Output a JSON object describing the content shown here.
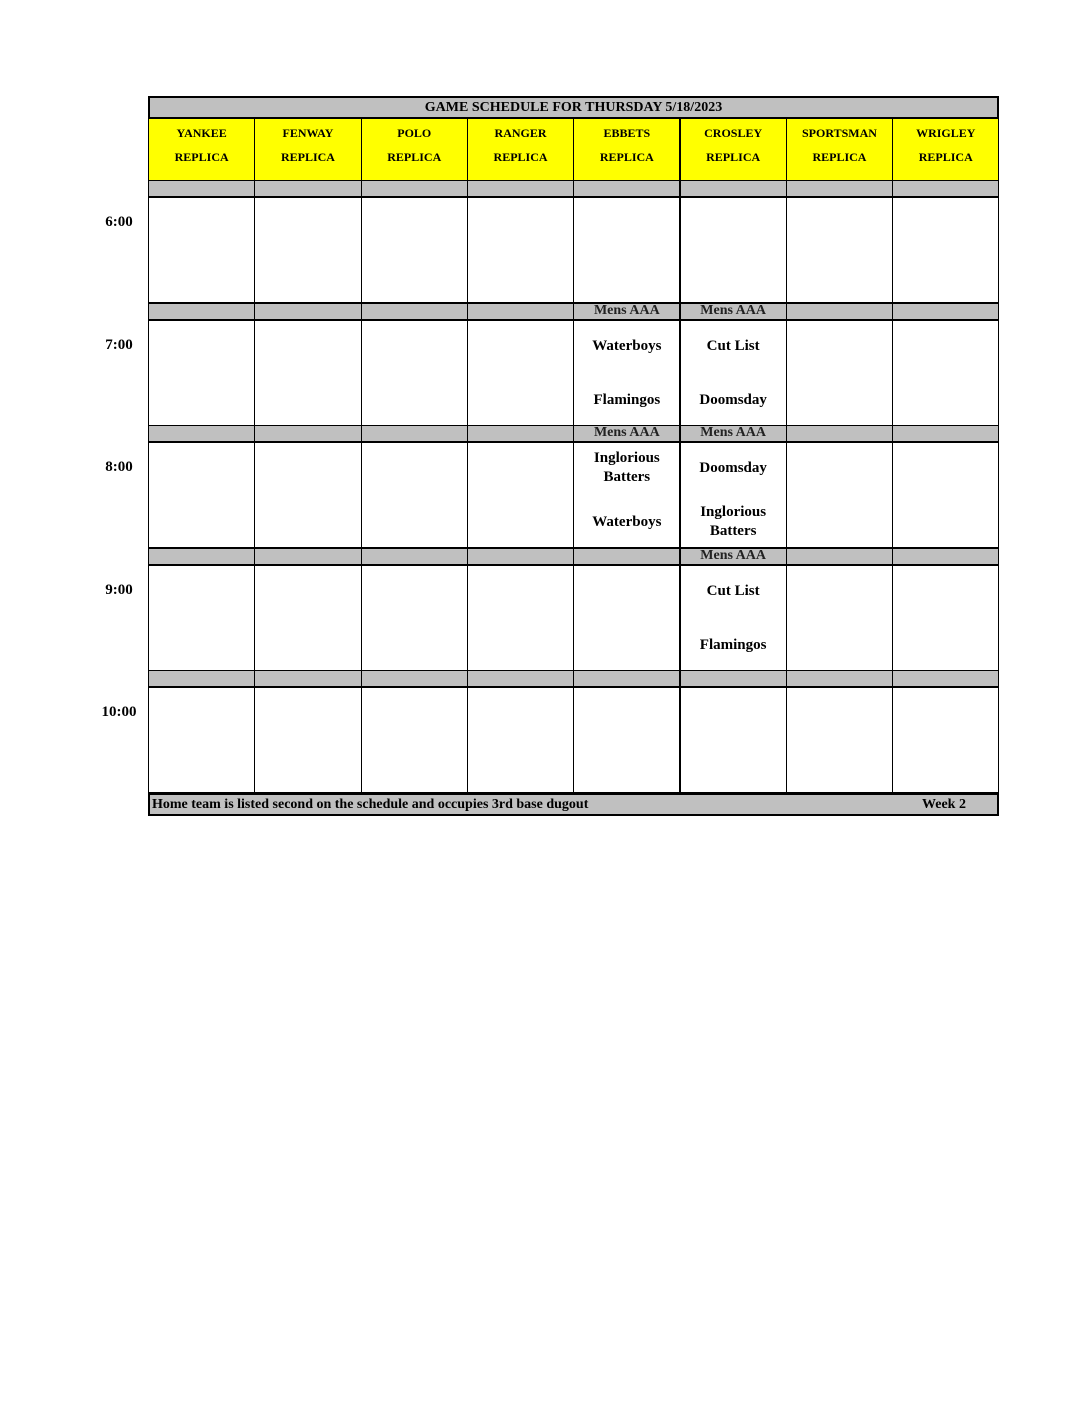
{
  "title": "GAME SCHEDULE FOR THURSDAY 5/18/2023",
  "fields": [
    {
      "name": "YANKEE",
      "sub": "REPLICA"
    },
    {
      "name": "FENWAY",
      "sub": "REPLICA"
    },
    {
      "name": "POLO",
      "sub": "REPLICA"
    },
    {
      "name": "RANGER",
      "sub": "REPLICA"
    },
    {
      "name": "EBBETS",
      "sub": "REPLICA"
    },
    {
      "name": "CROSLEY",
      "sub": "REPLICA"
    },
    {
      "name": "SPORTSMAN",
      "sub": "REPLICA"
    },
    {
      "name": "WRIGLEY",
      "sub": "REPLICA"
    }
  ],
  "slots": [
    {
      "time": "6:00",
      "games": []
    },
    {
      "time": "7:00",
      "games": [
        {
          "field": "EBBETS",
          "division": "Mens AAA",
          "away": "Waterboys",
          "home": "Flamingos"
        },
        {
          "field": "CROSLEY",
          "division": "Mens AAA",
          "away": "Cut List",
          "home": "Doomsday"
        }
      ]
    },
    {
      "time": "8:00",
      "games": [
        {
          "field": "EBBETS",
          "division": "Mens AAA",
          "away": "Inglorious Batters",
          "home": "Waterboys"
        },
        {
          "field": "CROSLEY",
          "division": "Mens AAA",
          "away": "Doomsday",
          "home": "Inglorious Batters"
        }
      ]
    },
    {
      "time": "9:00",
      "games": [
        {
          "field": "CROSLEY",
          "division": "Mens AAA",
          "away": "Cut List",
          "home": "Flamingos"
        }
      ]
    },
    {
      "time": "10:00",
      "games": []
    }
  ],
  "footer": {
    "note": "Home team is listed second on the schedule and occupies 3rd base dugout",
    "week": "Week 2"
  },
  "colors": {
    "header": "#ffff00",
    "band": "#c0c0c0"
  }
}
